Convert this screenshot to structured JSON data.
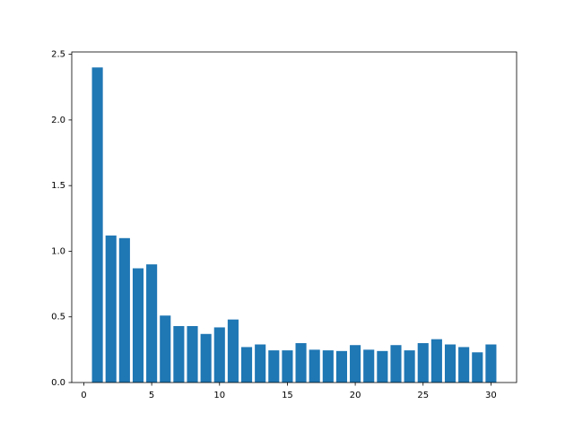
{
  "chart_data": {
    "type": "bar",
    "x": [
      1,
      2,
      3,
      4,
      5,
      6,
      7,
      8,
      9,
      10,
      11,
      12,
      13,
      14,
      15,
      16,
      17,
      18,
      19,
      20,
      21,
      22,
      23,
      24,
      25,
      26,
      27,
      28,
      29,
      30
    ],
    "values": [
      2.4,
      1.12,
      1.1,
      0.87,
      0.9,
      0.51,
      0.43,
      0.43,
      0.37,
      0.42,
      0.48,
      0.27,
      0.29,
      0.245,
      0.245,
      0.3,
      0.25,
      0.245,
      0.24,
      0.285,
      0.25,
      0.24,
      0.285,
      0.245,
      0.3,
      0.33,
      0.29,
      0.27,
      0.23,
      0.29
    ],
    "color": "#1f77b4",
    "xlim": [
      -0.89,
      31.89
    ],
    "xticks": [
      0,
      5,
      10,
      15,
      20,
      25,
      30
    ],
    "ylim": [
      0,
      2.518
    ],
    "yticks": [
      {
        "value": 0,
        "label": "0.0"
      },
      0.5,
      {
        "value": 1,
        "label": "1.0"
      },
      1.5,
      {
        "value": 2,
        "label": "2.0"
      },
      2.5
    ],
    "grid": false
  }
}
